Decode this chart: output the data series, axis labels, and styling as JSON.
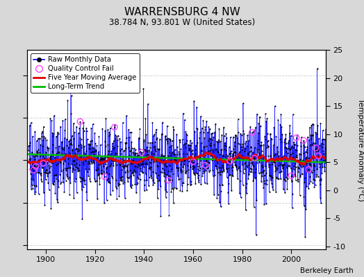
{
  "title": "WARRENSBURG 4 NW",
  "subtitle": "38.784 N, 93.801 W (United States)",
  "ylabel": "Temperature Anomaly (°C)",
  "attribution": "Berkeley Earth",
  "year_start": 1893,
  "year_end": 2013,
  "ylim_data": [
    -10.5,
    13.0
  ],
  "ylim_right_ticks": [
    -10,
    -5,
    0,
    5,
    10,
    15,
    20,
    25
  ],
  "left_ticks": [
    -10,
    -5,
    0,
    5,
    10
  ],
  "xticks": [
    1900,
    1920,
    1940,
    1960,
    1980,
    2000
  ],
  "raw_color": "#0000ff",
  "ma_color": "#dd0000",
  "trend_color": "#00bb00",
  "qc_color": "#ff44ff",
  "bg_color": "#d8d8d8",
  "plot_bg_color": "#ffffff",
  "grid_color": "#cccccc",
  "seed": 42
}
